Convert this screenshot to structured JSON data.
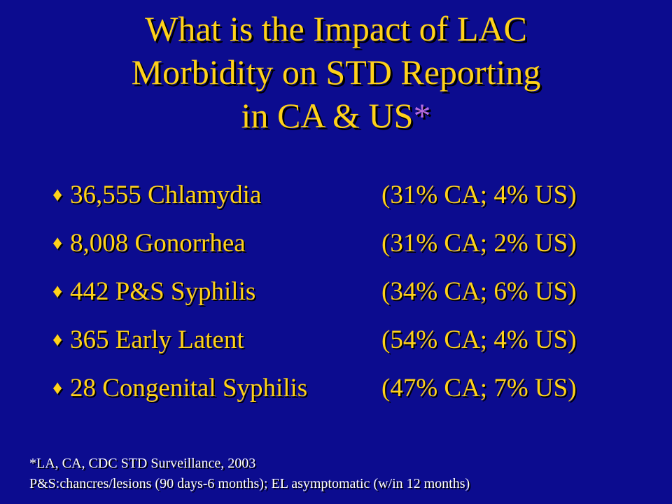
{
  "title": {
    "line1": "What is the Impact of LAC",
    "line2": "Morbidity on STD Reporting",
    "line3": "in CA & US",
    "asterisk": "*"
  },
  "bullet_glyph": "♦",
  "bullets": [
    {
      "label": "36,555 Chlamydia",
      "stat": "(31% CA; 4% US)"
    },
    {
      "label": "8,008 Gonorrhea",
      "stat": "(31% CA; 2% US)"
    },
    {
      "label": "442 P&S Syphilis",
      "stat": "(34% CA; 6% US)"
    },
    {
      "label": "365 Early Latent",
      "stat": "(54% CA; 4% US)"
    },
    {
      "label": "28 Congenital Syphilis",
      "stat": "(47% CA; 7% US)"
    }
  ],
  "footnote": {
    "line1": "*LA, CA, CDC STD Surveillance, 2003",
    "line2": "P&S:chancres/lesions (90 days-6 months); EL asymptomatic (w/in 12 months)"
  },
  "colors": {
    "background": "#0c0c8f",
    "title": "#ffd21a",
    "asterisk": "#b66be0",
    "footnote": "#ffffff"
  }
}
